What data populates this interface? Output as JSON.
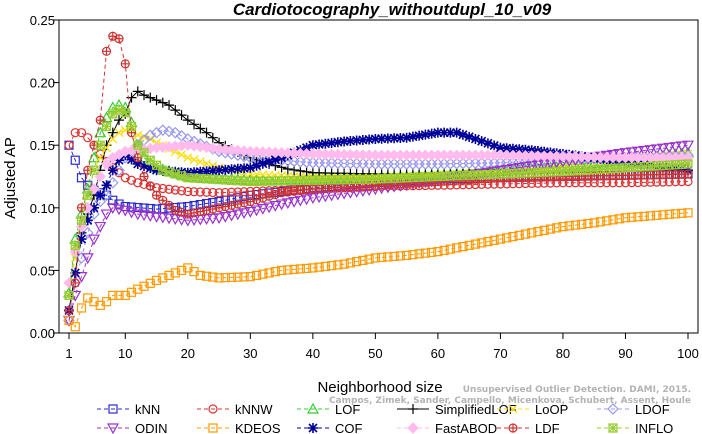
{
  "chart_data": {
    "type": "line",
    "title": "Cardiotocography_withoutdupl_10_v09",
    "xlabel": "Neighborhood size",
    "ylabel": "Adjusted AP",
    "xlim": [
      1,
      100
    ],
    "ylim": [
      0,
      0.25
    ],
    "xticks": [
      1,
      10,
      20,
      30,
      40,
      50,
      60,
      70,
      80,
      90,
      100
    ],
    "yticks": [
      "0.00",
      "0.05",
      "0.10",
      "0.15",
      "0.20",
      "0.25"
    ],
    "grid": false,
    "legend_position": "bottom",
    "watermark": [
      "Unsupervised Outlier Detection. DAMI, 2015.",
      "Campos, Zimek, Sander, Campello, Micenkova, Schubert, Assent, Houle"
    ],
    "series": [
      {
        "name": "kNN",
        "color": "#2b2bcc",
        "marker": "square",
        "line": "dashed",
        "points": [
          [
            1,
            0.15
          ],
          [
            2,
            0.138
          ],
          [
            3,
            0.124
          ],
          [
            4,
            0.118
          ],
          [
            5,
            0.114
          ],
          [
            6,
            0.112
          ],
          [
            7,
            0.11
          ],
          [
            8,
            0.106
          ],
          [
            9,
            0.103
          ],
          [
            10,
            0.101
          ],
          [
            15,
            0.099
          ],
          [
            20,
            0.101
          ],
          [
            25,
            0.105
          ],
          [
            30,
            0.11
          ],
          [
            40,
            0.116
          ],
          [
            50,
            0.12
          ],
          [
            60,
            0.123
          ],
          [
            70,
            0.124
          ],
          [
            80,
            0.125
          ],
          [
            90,
            0.126
          ],
          [
            100,
            0.127
          ]
        ]
      },
      {
        "name": "kNNW",
        "color": "#dd3333",
        "marker": "circle",
        "line": "dashed",
        "points": [
          [
            1,
            0.15
          ],
          [
            2,
            0.16
          ],
          [
            3,
            0.16
          ],
          [
            4,
            0.156
          ],
          [
            5,
            0.15
          ],
          [
            6,
            0.143
          ],
          [
            7,
            0.137
          ],
          [
            8,
            0.132
          ],
          [
            9,
            0.128
          ],
          [
            10,
            0.124
          ],
          [
            12,
            0.12
          ],
          [
            15,
            0.116
          ],
          [
            20,
            0.113
          ],
          [
            25,
            0.112
          ],
          [
            30,
            0.113
          ],
          [
            40,
            0.115
          ],
          [
            50,
            0.117
          ],
          [
            60,
            0.118
          ],
          [
            70,
            0.119
          ],
          [
            80,
            0.12
          ],
          [
            90,
            0.12
          ],
          [
            100,
            0.121
          ]
        ]
      },
      {
        "name": "LOF",
        "color": "#33cc33",
        "marker": "triangle",
        "line": "dashed",
        "points": [
          [
            1,
            0.032
          ],
          [
            2,
            0.075
          ],
          [
            3,
            0.095
          ],
          [
            4,
            0.115
          ],
          [
            5,
            0.14
          ],
          [
            6,
            0.16
          ],
          [
            7,
            0.172
          ],
          [
            8,
            0.18
          ],
          [
            9,
            0.182
          ],
          [
            10,
            0.18
          ],
          [
            11,
            0.168
          ],
          [
            12,
            0.15
          ],
          [
            13,
            0.14
          ],
          [
            15,
            0.132
          ],
          [
            20,
            0.125
          ],
          [
            30,
            0.122
          ],
          [
            40,
            0.123
          ],
          [
            50,
            0.124
          ],
          [
            60,
            0.126
          ],
          [
            70,
            0.129
          ],
          [
            80,
            0.133
          ],
          [
            90,
            0.138
          ],
          [
            100,
            0.144
          ]
        ]
      },
      {
        "name": "SimplifiedLOF",
        "color": "#000000",
        "marker": "plus",
        "line": "solid",
        "points": [
          [
            1,
            0.018
          ],
          [
            2,
            0.048
          ],
          [
            3,
            0.08
          ],
          [
            4,
            0.095
          ],
          [
            5,
            0.11
          ],
          [
            6,
            0.13
          ],
          [
            7,
            0.15
          ],
          [
            8,
            0.16
          ],
          [
            9,
            0.17
          ],
          [
            10,
            0.175
          ],
          [
            11,
            0.188
          ],
          [
            12,
            0.193
          ],
          [
            13,
            0.19
          ],
          [
            15,
            0.186
          ],
          [
            17,
            0.182
          ],
          [
            20,
            0.17
          ],
          [
            23,
            0.16
          ],
          [
            25,
            0.152
          ],
          [
            27,
            0.147
          ],
          [
            30,
            0.14
          ],
          [
            33,
            0.135
          ],
          [
            36,
            0.131
          ],
          [
            40,
            0.128
          ],
          [
            50,
            0.127
          ],
          [
            60,
            0.127
          ],
          [
            70,
            0.127
          ],
          [
            80,
            0.128
          ],
          [
            90,
            0.129
          ],
          [
            100,
            0.13
          ]
        ]
      },
      {
        "name": "LoOP",
        "color": "#ffdd00",
        "marker": "x",
        "line": "dashed",
        "points": [
          [
            1,
            0.03
          ],
          [
            2,
            0.06
          ],
          [
            3,
            0.09
          ],
          [
            4,
            0.11
          ],
          [
            5,
            0.13
          ],
          [
            6,
            0.14
          ],
          [
            7,
            0.148
          ],
          [
            8,
            0.155
          ],
          [
            9,
            0.16
          ],
          [
            10,
            0.162
          ],
          [
            11,
            0.163
          ],
          [
            12,
            0.158
          ],
          [
            14,
            0.155
          ],
          [
            15,
            0.152
          ],
          [
            20,
            0.14
          ],
          [
            25,
            0.132
          ],
          [
            30,
            0.127
          ],
          [
            40,
            0.124
          ],
          [
            50,
            0.124
          ],
          [
            60,
            0.126
          ],
          [
            70,
            0.129
          ],
          [
            80,
            0.133
          ],
          [
            90,
            0.138
          ],
          [
            100,
            0.143
          ]
        ]
      },
      {
        "name": "LDOF",
        "color": "#9999ee",
        "marker": "diamond",
        "line": "dashed",
        "points": [
          [
            1,
            0.01
          ],
          [
            2,
            0.04
          ],
          [
            3,
            0.06
          ],
          [
            4,
            0.08
          ],
          [
            5,
            0.095
          ],
          [
            6,
            0.105
          ],
          [
            7,
            0.11
          ],
          [
            8,
            0.12
          ],
          [
            9,
            0.13
          ],
          [
            10,
            0.14
          ],
          [
            12,
            0.15
          ],
          [
            14,
            0.158
          ],
          [
            16,
            0.162
          ],
          [
            18,
            0.16
          ],
          [
            20,
            0.155
          ],
          [
            25,
            0.145
          ],
          [
            30,
            0.14
          ],
          [
            40,
            0.136
          ],
          [
            50,
            0.135
          ],
          [
            60,
            0.135
          ],
          [
            70,
            0.136
          ],
          [
            80,
            0.138
          ],
          [
            90,
            0.14
          ],
          [
            100,
            0.142
          ]
        ]
      },
      {
        "name": "ODIN",
        "color": "#9933cc",
        "marker": "triangle-down",
        "line": "dashed",
        "points": [
          [
            1,
            0.01
          ],
          [
            2,
            0.03
          ],
          [
            3,
            0.045
          ],
          [
            4,
            0.06
          ],
          [
            5,
            0.075
          ],
          [
            6,
            0.085
          ],
          [
            7,
            0.095
          ],
          [
            8,
            0.1
          ],
          [
            10,
            0.098
          ],
          [
            12,
            0.095
          ],
          [
            15,
            0.093
          ],
          [
            20,
            0.09
          ],
          [
            25,
            0.092
          ],
          [
            30,
            0.097
          ],
          [
            35,
            0.103
          ],
          [
            40,
            0.108
          ],
          [
            50,
            0.115
          ],
          [
            60,
            0.122
          ],
          [
            70,
            0.13
          ],
          [
            80,
            0.137
          ],
          [
            90,
            0.144
          ],
          [
            100,
            0.15
          ]
        ]
      },
      {
        "name": "KDEOS",
        "color": "#ff9900",
        "marker": "square",
        "line": "dashed",
        "points": [
          [
            1,
            0.01
          ],
          [
            2,
            0.005
          ],
          [
            3,
            0.02
          ],
          [
            4,
            0.028
          ],
          [
            5,
            0.025
          ],
          [
            6,
            0.022
          ],
          [
            7,
            0.025
          ],
          [
            8,
            0.03
          ],
          [
            10,
            0.03
          ],
          [
            12,
            0.035
          ],
          [
            15,
            0.042
          ],
          [
            18,
            0.048
          ],
          [
            20,
            0.052
          ],
          [
            22,
            0.046
          ],
          [
            25,
            0.044
          ],
          [
            30,
            0.045
          ],
          [
            35,
            0.05
          ],
          [
            40,
            0.052
          ],
          [
            45,
            0.055
          ],
          [
            50,
            0.06
          ],
          [
            55,
            0.062
          ],
          [
            60,
            0.065
          ],
          [
            65,
            0.07
          ],
          [
            70,
            0.075
          ],
          [
            75,
            0.08
          ],
          [
            80,
            0.085
          ],
          [
            85,
            0.088
          ],
          [
            90,
            0.092
          ],
          [
            95,
            0.094
          ],
          [
            100,
            0.096
          ]
        ]
      },
      {
        "name": "COF",
        "color": "#000099",
        "marker": "asterisk",
        "line": "dashed",
        "points": [
          [
            1,
            0.018
          ],
          [
            2,
            0.048
          ],
          [
            3,
            0.075
          ],
          [
            4,
            0.09
          ],
          [
            5,
            0.1
          ],
          [
            6,
            0.11
          ],
          [
            7,
            0.118
          ],
          [
            8,
            0.13
          ],
          [
            9,
            0.138
          ],
          [
            10,
            0.142
          ],
          [
            12,
            0.135
          ],
          [
            15,
            0.13
          ],
          [
            20,
            0.128
          ],
          [
            25,
            0.13
          ],
          [
            30,
            0.132
          ],
          [
            35,
            0.14
          ],
          [
            40,
            0.15
          ],
          [
            45,
            0.153
          ],
          [
            50,
            0.155
          ],
          [
            55,
            0.156
          ],
          [
            60,
            0.16
          ],
          [
            63,
            0.16
          ],
          [
            66,
            0.155
          ],
          [
            70,
            0.148
          ],
          [
            75,
            0.146
          ],
          [
            80,
            0.143
          ],
          [
            85,
            0.14
          ],
          [
            90,
            0.137
          ],
          [
            95,
            0.133
          ],
          [
            100,
            0.13
          ]
        ]
      },
      {
        "name": "FastABOD",
        "color": "#ffbbee",
        "marker": "diamond-filled",
        "line": "dashed",
        "points": [
          [
            1,
            0.04
          ],
          [
            2,
            0.065
          ],
          [
            3,
            0.085
          ],
          [
            4,
            0.1
          ],
          [
            5,
            0.115
          ],
          [
            6,
            0.125
          ],
          [
            7,
            0.135
          ],
          [
            8,
            0.14
          ],
          [
            10,
            0.145
          ],
          [
            15,
            0.148
          ],
          [
            20,
            0.15
          ],
          [
            25,
            0.147
          ],
          [
            30,
            0.145
          ],
          [
            40,
            0.143
          ],
          [
            50,
            0.142
          ],
          [
            60,
            0.142
          ],
          [
            70,
            0.142
          ],
          [
            80,
            0.141
          ],
          [
            90,
            0.14
          ],
          [
            100,
            0.14
          ]
        ]
      },
      {
        "name": "LDF",
        "color": "#cc3333",
        "marker": "circle-plus",
        "line": "dashed",
        "points": [
          [
            1,
            0.018
          ],
          [
            2,
            0.04
          ],
          [
            3,
            0.1
          ],
          [
            4,
            0.13
          ],
          [
            5,
            0.15
          ],
          [
            6,
            0.17
          ],
          [
            7,
            0.225
          ],
          [
            8,
            0.237
          ],
          [
            9,
            0.235
          ],
          [
            10,
            0.215
          ],
          [
            11,
            0.16
          ],
          [
            12,
            0.14
          ],
          [
            13,
            0.125
          ],
          [
            15,
            0.11
          ],
          [
            18,
            0.098
          ],
          [
            20,
            0.095
          ],
          [
            25,
            0.1
          ],
          [
            30,
            0.105
          ],
          [
            35,
            0.112
          ],
          [
            40,
            0.115
          ],
          [
            50,
            0.118
          ],
          [
            60,
            0.121
          ],
          [
            70,
            0.124
          ],
          [
            80,
            0.125
          ],
          [
            90,
            0.126
          ],
          [
            100,
            0.127
          ]
        ]
      },
      {
        "name": "INFLO",
        "color": "#99cc33",
        "marker": "asterisk-box",
        "line": "dashed",
        "points": [
          [
            1,
            0.03
          ],
          [
            2,
            0.07
          ],
          [
            3,
            0.09
          ],
          [
            4,
            0.11
          ],
          [
            5,
            0.13
          ],
          [
            6,
            0.15
          ],
          [
            7,
            0.165
          ],
          [
            8,
            0.175
          ],
          [
            9,
            0.178
          ],
          [
            10,
            0.176
          ],
          [
            11,
            0.165
          ],
          [
            12,
            0.15
          ],
          [
            14,
            0.138
          ],
          [
            16,
            0.13
          ],
          [
            20,
            0.124
          ],
          [
            30,
            0.121
          ],
          [
            40,
            0.122
          ],
          [
            50,
            0.123
          ],
          [
            60,
            0.125
          ],
          [
            70,
            0.127
          ],
          [
            80,
            0.129
          ],
          [
            90,
            0.132
          ],
          [
            100,
            0.135
          ]
        ]
      }
    ]
  }
}
